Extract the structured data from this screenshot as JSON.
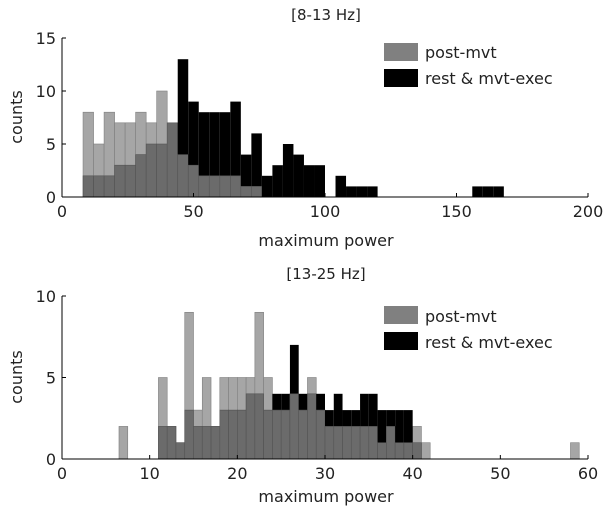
{
  "chart_data": [
    {
      "type": "bar",
      "title": "[8-13 Hz]",
      "xlabel": "maximum power",
      "ylabel": "counts",
      "xlim": [
        0,
        200
      ],
      "ylim": [
        0,
        15
      ],
      "xticks": [
        0,
        50,
        100,
        150,
        200
      ],
      "yticks": [
        0,
        5,
        10,
        15
      ],
      "bin_width": 4,
      "legend_position": "top-right",
      "series": [
        {
          "name": "post-mvt",
          "color": "#a6a6a6",
          "bins": [
            [
              8,
              8
            ],
            [
              12,
              5
            ],
            [
              16,
              8
            ],
            [
              20,
              7
            ],
            [
              24,
              7
            ],
            [
              28,
              8
            ],
            [
              32,
              7
            ],
            [
              36,
              10
            ],
            [
              40,
              7
            ],
            [
              44,
              4
            ],
            [
              48,
              3
            ],
            [
              52,
              2
            ],
            [
              56,
              2
            ],
            [
              60,
              2
            ],
            [
              64,
              2
            ],
            [
              68,
              1
            ],
            [
              72,
              1
            ]
          ]
        },
        {
          "name": "rest & mvt-exec",
          "color": "#000000",
          "bins": [
            [
              8,
              2
            ],
            [
              12,
              2
            ],
            [
              16,
              2
            ],
            [
              20,
              3
            ],
            [
              24,
              3
            ],
            [
              28,
              4
            ],
            [
              32,
              5
            ],
            [
              36,
              5
            ],
            [
              40,
              7
            ],
            [
              44,
              13
            ],
            [
              48,
              9
            ],
            [
              52,
              8
            ],
            [
              56,
              8
            ],
            [
              60,
              8
            ],
            [
              64,
              9
            ],
            [
              68,
              4
            ],
            [
              72,
              6
            ],
            [
              76,
              2
            ],
            [
              80,
              3
            ],
            [
              84,
              5
            ],
            [
              88,
              4
            ],
            [
              92,
              3
            ],
            [
              96,
              3
            ],
            [
              104,
              2
            ],
            [
              108,
              1
            ],
            [
              112,
              1
            ],
            [
              116,
              1
            ],
            [
              156,
              1
            ],
            [
              160,
              1
            ],
            [
              164,
              1
            ]
          ]
        }
      ]
    },
    {
      "type": "bar",
      "title": "[13-25 Hz]",
      "xlabel": "maximum power",
      "ylabel": "counts",
      "xlim": [
        0,
        60
      ],
      "ylim": [
        0,
        10
      ],
      "xticks": [
        0,
        10,
        20,
        30,
        40,
        50,
        60
      ],
      "yticks": [
        0,
        5,
        10
      ],
      "bin_width": 1,
      "legend_position": "top-right",
      "series": [
        {
          "name": "post-mvt",
          "color": "#a6a6a6",
          "bins": [
            [
              6.5,
              2
            ],
            [
              11,
              5
            ],
            [
              12,
              2
            ],
            [
              13,
              1
            ],
            [
              14,
              9
            ],
            [
              15,
              3
            ],
            [
              16,
              5
            ],
            [
              17,
              2
            ],
            [
              18,
              5
            ],
            [
              19,
              5
            ],
            [
              20,
              5
            ],
            [
              21,
              5
            ],
            [
              22,
              9
            ],
            [
              23,
              5
            ],
            [
              24,
              3
            ],
            [
              25,
              3
            ],
            [
              26,
              4
            ],
            [
              27,
              3
            ],
            [
              28,
              5
            ],
            [
              29,
              3
            ],
            [
              30,
              2
            ],
            [
              31,
              2
            ],
            [
              32,
              2
            ],
            [
              33,
              2
            ],
            [
              34,
              2
            ],
            [
              35,
              2
            ],
            [
              36,
              1
            ],
            [
              37,
              2
            ],
            [
              38,
              1
            ],
            [
              39,
              1
            ],
            [
              40,
              2
            ],
            [
              41,
              1
            ],
            [
              58,
              1
            ]
          ]
        },
        {
          "name": "rest & mvt-exec",
          "color": "#000000",
          "bins": [
            [
              11,
              2
            ],
            [
              12,
              2
            ],
            [
              13,
              1
            ],
            [
              14,
              3
            ],
            [
              15,
              2
            ],
            [
              16,
              2
            ],
            [
              17,
              2
            ],
            [
              18,
              3
            ],
            [
              19,
              3
            ],
            [
              20,
              3
            ],
            [
              21,
              4
            ],
            [
              22,
              4
            ],
            [
              23,
              3
            ],
            [
              24,
              4
            ],
            [
              25,
              4
            ],
            [
              26,
              7
            ],
            [
              27,
              4
            ],
            [
              28,
              4
            ],
            [
              29,
              4
            ],
            [
              30,
              3
            ],
            [
              31,
              4
            ],
            [
              32,
              3
            ],
            [
              33,
              3
            ],
            [
              34,
              4
            ],
            [
              35,
              4
            ],
            [
              36,
              3
            ],
            [
              37,
              3
            ],
            [
              38,
              3
            ],
            [
              39,
              3
            ],
            [
              40,
              1
            ]
          ]
        }
      ]
    }
  ]
}
